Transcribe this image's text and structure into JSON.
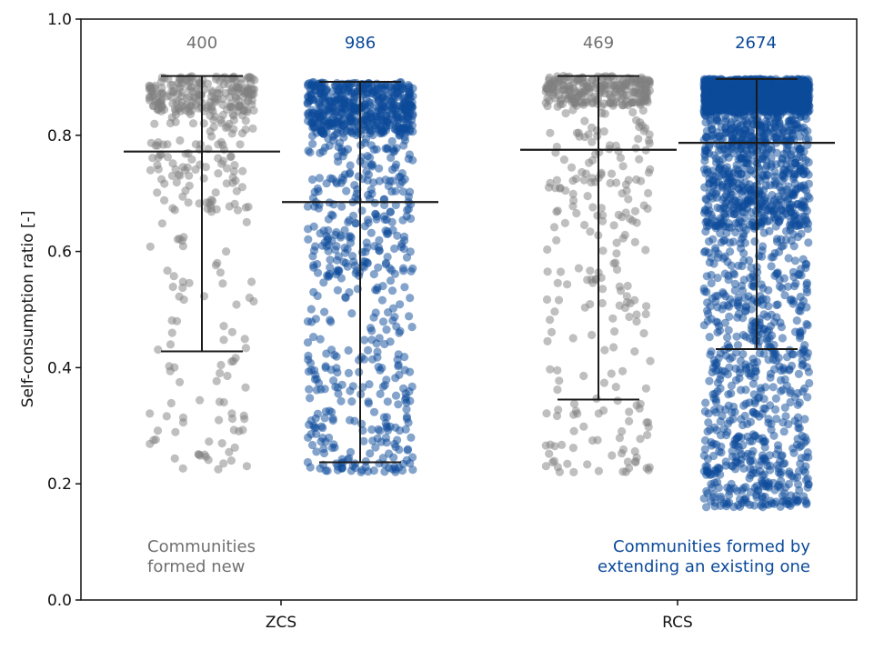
{
  "chart_data": {
    "type": "scatter",
    "title": "",
    "xlabel": "",
    "ylabel": "Self-consumption ratio [-]",
    "ylim": [
      0.0,
      1.0
    ],
    "yticks": [
      "0.0",
      "0.2",
      "0.4",
      "0.6",
      "0.8",
      "1.0"
    ],
    "categories": [
      "ZCS",
      "RCS"
    ],
    "colors": {
      "new": "#808080",
      "extended": "#0b4a9a",
      "lines": "#1a1a1a",
      "count_new": "#707070"
    },
    "series": [
      {
        "name": "Communities formed new",
        "groups": [
          {
            "category": "ZCS",
            "count": "400",
            "n": 400,
            "median": 0.772,
            "whisker_low": 0.428,
            "whisker_high": 0.902,
            "min": 0.225,
            "max": 0.902,
            "inner_low": 0.67,
            "inner_high": 0.84
          },
          {
            "category": "RCS",
            "count": "469",
            "n": 469,
            "median": 0.775,
            "whisker_low": 0.345,
            "whisker_high": 0.902,
            "min": 0.22,
            "max": 0.902,
            "inner_low": 0.64,
            "inner_high": 0.85
          }
        ]
      },
      {
        "name": "Communities formed by extending an existing one",
        "groups": [
          {
            "category": "ZCS",
            "count": "986",
            "n": 986,
            "median": 0.685,
            "whisker_low": 0.237,
            "whisker_high": 0.892,
            "min": 0.22,
            "max": 0.892,
            "inner_low": 0.56,
            "inner_high": 0.8
          },
          {
            "category": "RCS",
            "count": "2674",
            "n": 2674,
            "median": 0.787,
            "whisker_low": 0.432,
            "whisker_high": 0.897,
            "min": 0.16,
            "max": 0.897,
            "inner_low": 0.64,
            "inner_high": 0.84
          }
        ]
      }
    ],
    "annotations": {
      "new_line1": "Communities",
      "new_line2": "formed new",
      "ext_line1": "Communities formed by",
      "ext_line2": "extending an existing one"
    }
  }
}
